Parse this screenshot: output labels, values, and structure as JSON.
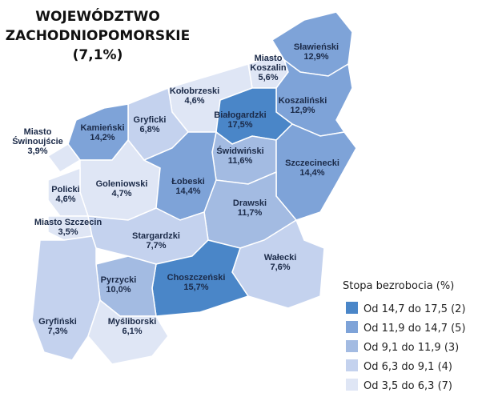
{
  "title": [
    "WOJEWÓDZTWO",
    "ZACHODNIOPOMORSKIE",
    "(7,1%)"
  ],
  "regions": [
    {
      "name": [
        "Sławieński"
      ],
      "value": 12.9,
      "value_label": "12,9%"
    },
    {
      "name": [
        "Miasto",
        "Koszalin"
      ],
      "value": 5.6,
      "value_label": "5,6%"
    },
    {
      "name": [
        "Koszaliński"
      ],
      "value": 12.9,
      "value_label": "12,9%"
    },
    {
      "name": [
        "Kołobrzeski"
      ],
      "value": 4.6,
      "value_label": "4,6%"
    },
    {
      "name": [
        "Białogardzki"
      ],
      "value": 17.5,
      "value_label": "17,5%"
    },
    {
      "name": [
        "Gryficki"
      ],
      "value": 6.8,
      "value_label": "6,8%"
    },
    {
      "name": [
        "Kamieński"
      ],
      "value": 14.2,
      "value_label": "14,2%"
    },
    {
      "name": [
        "Miasto",
        "Świnoujście"
      ],
      "value": 3.9,
      "value_label": "3,9%"
    },
    {
      "name": [
        "Świdwiński"
      ],
      "value": 11.6,
      "value_label": "11,6%"
    },
    {
      "name": [
        "Szczecinecki"
      ],
      "value": 14.4,
      "value_label": "14,4%"
    },
    {
      "name": [
        "Goleniowski"
      ],
      "value": 4.7,
      "value_label": "4,7%"
    },
    {
      "name": [
        "Łobeski"
      ],
      "value": 14.4,
      "value_label": "14,4%"
    },
    {
      "name": [
        "Policki"
      ],
      "value": 4.6,
      "value_label": "4,6%"
    },
    {
      "name": [
        "Miasto Szczecin"
      ],
      "value": 3.5,
      "value_label": "3,5%"
    },
    {
      "name": [
        "Drawski"
      ],
      "value": 11.7,
      "value_label": "11,7%"
    },
    {
      "name": [
        "Stargardzki"
      ],
      "value": 7.7,
      "value_label": "7,7%"
    },
    {
      "name": [
        "Wałecki"
      ],
      "value": 7.6,
      "value_label": "7,6%"
    },
    {
      "name": [
        "Choszczeński"
      ],
      "value": 15.7,
      "value_label": "15,7%"
    },
    {
      "name": [
        "Pyrzycki"
      ],
      "value": 10.0,
      "value_label": "10,0%"
    },
    {
      "name": [
        "Gryfiński"
      ],
      "value": 7.3,
      "value_label": "7,3%"
    },
    {
      "name": [
        "Myśliborski"
      ],
      "value": 6.1,
      "value_label": "6,1%"
    }
  ],
  "legend": {
    "title": "Stopa bezrobocia (%)",
    "items": [
      {
        "label": "Od 14,7 do 17,5 (2)",
        "min": 14.7,
        "max": 17.5,
        "color": "#4a86c8"
      },
      {
        "label": "Od 11,9 do 14,7 (5)",
        "min": 11.9,
        "max": 14.7,
        "color": "#7ea3d8"
      },
      {
        "label": "Od 9,1 do 11,9 (3)",
        "min": 9.1,
        "max": 11.9,
        "color": "#a3bbe2"
      },
      {
        "label": "Od 6,3 do 9,1 (4)",
        "min": 6.3,
        "max": 9.1,
        "color": "#c4d2ee"
      },
      {
        "label": "Od 3,5 do 6,3 (7)",
        "min": 3.5,
        "max": 6.3,
        "color": "#dfe6f5"
      }
    ]
  }
}
